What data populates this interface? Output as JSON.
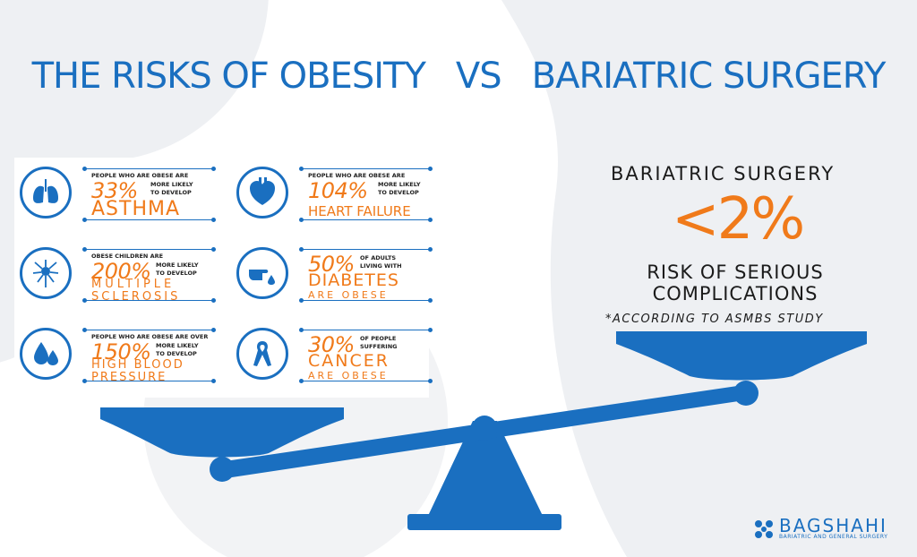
{
  "title": {
    "left": "THE RISKS OF OBESITY",
    "vs": "VS",
    "right": "BARIATRIC SURGERY"
  },
  "cards": [
    {
      "icon": "lungs-icon",
      "top": "PEOPLE WHO ARE OBESE ARE",
      "pct": "33%",
      "side1": "MORE LIKELY",
      "side2": "TO DEVELOP",
      "line1": "ASTHMA",
      "line2": ""
    },
    {
      "icon": "heart-icon",
      "top": "PEOPLE WHO ARE OBESE ARE",
      "pct": "104%",
      "side1": "MORE LIKELY",
      "side2": "TO DEVELOP",
      "line1": "HEART FAILURE",
      "line2": ""
    },
    {
      "icon": "neuron-icon",
      "top": "OBESE CHILDREN ARE",
      "pct": "200%",
      "side1": "MORE LIKELY",
      "side2": "TO DEVELOP",
      "line1": "MULTIPLE",
      "line2": "SCLEROSIS"
    },
    {
      "icon": "finger-prick-icon",
      "top": "",
      "pct": "50%",
      "side1": "OF ADULTS",
      "side2": "LIVING WITH",
      "line1": "DIABETES",
      "line2": "ARE OBESE"
    },
    {
      "icon": "blood-drops-icon",
      "top": "PEOPLE WHO ARE OBESE ARE OVER",
      "pct": "150%",
      "side1": "MORE LIKELY",
      "side2": "TO DEVELOP",
      "line1": "HIGH BLOOD",
      "line2": "PRESSURE"
    },
    {
      "icon": "ribbon-icon",
      "top": "",
      "pct": "30%",
      "side1": "OF PEOPLE",
      "side2": "SUFFERING",
      "line1": "CANCER",
      "line2": "ARE OBESE"
    }
  ],
  "surgery": {
    "heading": "BARIATRIC SURGERY",
    "pct": "<2%",
    "risk1": "RISK OF SERIOUS",
    "risk2": "COMPLICATIONS",
    "note": "*ACCORDING TO ASMBS STUDY"
  },
  "logo": {
    "name": "BAGSHAHI",
    "tagline": "BARIATRIC AND GENERAL SURGERY"
  },
  "colors": {
    "blue": "#1a6fc0",
    "orange": "#f07a1a",
    "background_shape": "#eef0f3"
  }
}
